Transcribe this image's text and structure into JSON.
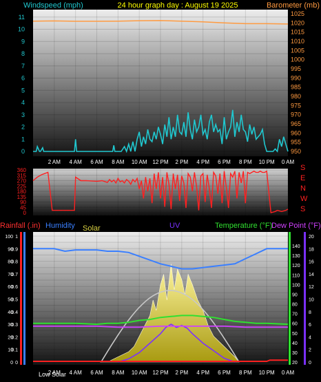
{
  "header": {
    "left": "Windspeed (mph)",
    "center": "24 hour graph day : August 19 2025",
    "right": "Barometer (mb)"
  },
  "colors": {
    "wind": "#20c8d0",
    "barometer": "#ff9a40",
    "direction": "#ff2020",
    "humidity": "#3a7fff",
    "temperature": "#30e030",
    "dewpoint": "#d040ff",
    "uv": "#7a30ff",
    "solar": "#d8d040",
    "rain": "#ff2020",
    "sun_arc": "#c8c8c8",
    "header_center": "#ffff00"
  },
  "time_labels": [
    "2 AM",
    "4 AM",
    "6 AM",
    "8 AM",
    "10 AM",
    "12 PM",
    "2 PM",
    "4 PM",
    "6 PM",
    "8 PM",
    "10 PM",
    "0 AM"
  ],
  "chart_data": [
    {
      "type": "line",
      "title": "24 hour graph day : August 19 2025",
      "xlabel": "",
      "ylabel": "Windspeed (mph)",
      "y2label": "Barometer (mb)",
      "x_range_hours": [
        0,
        24
      ],
      "ylim": [
        0,
        12
      ],
      "y_ticks": [
        0,
        1,
        2,
        3,
        4,
        5,
        6,
        7,
        8,
        9,
        10,
        11
      ],
      "y2lim": [
        947,
        1027
      ],
      "y2_ticks": [
        950,
        955,
        960,
        965,
        970,
        975,
        980,
        985,
        990,
        995,
        1000,
        1005,
        1010,
        1015,
        1020,
        1025
      ],
      "series": [
        {
          "name": "Windspeed (mph)",
          "x": [
            0.0,
            0.3,
            0.4,
            0.6,
            0.7,
            0.9,
            1.0,
            1.2,
            1.5,
            2.0,
            2.5,
            3.0,
            3.5,
            3.9,
            4.0,
            4.1,
            4.5,
            5.0,
            5.5,
            6.0,
            6.5,
            7.0,
            7.5,
            7.6,
            7.7,
            8.0,
            8.3,
            8.6,
            8.8,
            9.0,
            9.2,
            9.4,
            9.6,
            9.8,
            10.0,
            10.2,
            10.4,
            10.6,
            10.8,
            11.0,
            11.2,
            11.4,
            11.6,
            11.8,
            12.0,
            12.2,
            12.4,
            12.6,
            12.8,
            13.0,
            13.2,
            13.4,
            13.6,
            13.8,
            14.0,
            14.2,
            14.4,
            14.6,
            14.8,
            15.0,
            15.2,
            15.4,
            15.6,
            15.8,
            16.0,
            16.2,
            16.4,
            16.6,
            16.8,
            17.0,
            17.2,
            17.4,
            17.6,
            17.8,
            18.0,
            18.2,
            18.4,
            18.6,
            18.8,
            19.0,
            19.2,
            19.4,
            19.6,
            19.8,
            20.0,
            20.2,
            20.4,
            20.6,
            20.8,
            21.0,
            21.2,
            21.4,
            21.6,
            21.8,
            22.0,
            22.2,
            22.4,
            22.6,
            22.8,
            23.0,
            23.2,
            23.4,
            23.6,
            23.8,
            24.0
          ],
          "values": [
            0,
            0,
            0.4,
            0,
            0,
            0.3,
            0,
            0,
            0,
            0,
            0,
            0,
            0,
            0,
            1,
            0,
            0,
            0,
            0,
            0,
            0,
            0,
            0,
            0.5,
            0,
            0,
            0,
            0.4,
            0,
            0.6,
            0,
            0.8,
            0,
            1.0,
            1.6,
            0.4,
            1.2,
            0.6,
            1.8,
            1.0,
            0.8,
            1.6,
            1.0,
            2.0,
            1.4,
            0.6,
            2.2,
            1.2,
            2.8,
            1.0,
            2.0,
            1.2,
            3.0,
            1.6,
            1.4,
            2.4,
            1.2,
            3.2,
            1.8,
            1.0,
            2.6,
            1.6,
            2.0,
            3.0,
            1.4,
            1.8,
            1.0,
            2.4,
            3.0,
            1.6,
            2.2,
            1.6,
            1.8,
            0.6,
            2.8,
            1.0,
            1.6,
            2.0,
            3.4,
            1.2,
            2.4,
            1.6,
            3.0,
            1.8,
            1.6,
            0.8,
            2.2,
            1.4,
            2.0,
            1.0,
            1.2,
            1.4,
            1.8,
            0.6,
            0,
            0,
            0,
            0,
            0.2,
            0,
            1.0,
            0.4,
            1.2,
            0.6,
            0
          ]
        },
        {
          "name": "Barometer (mb)",
          "x": [
            0,
            2,
            4,
            6,
            8,
            10,
            12,
            14,
            16,
            18,
            20,
            22,
            24
          ],
          "values": [
            1021.0,
            1021.1,
            1020.9,
            1020.9,
            1021.0,
            1021.2,
            1021.3,
            1021.0,
            1020.6,
            1020.0,
            1019.6,
            1019.6,
            1019.4
          ]
        }
      ]
    },
    {
      "type": "line",
      "ylabel": "",
      "ylim": [
        0,
        360
      ],
      "y_ticks": [
        0,
        45,
        90,
        135,
        180,
        225,
        270,
        315,
        360
      ],
      "direction_labels": [
        "S",
        "E",
        "N",
        "W",
        "S"
      ],
      "series": [
        {
          "name": "",
          "x": [
            0.0,
            0.4,
            0.8,
            1.4,
            1.8,
            3.0,
            3.6,
            3.9,
            4.0,
            4.5,
            5.0,
            6.0,
            6.5,
            7.0,
            7.2,
            7.4,
            7.6,
            7.8,
            8.0,
            8.2,
            8.4,
            8.6,
            8.8,
            9.0,
            9.2,
            9.4,
            9.6,
            9.8,
            10.0,
            10.2,
            10.4,
            10.6,
            10.8,
            11.0,
            11.2,
            11.4,
            11.6,
            11.8,
            12.0,
            12.2,
            12.4,
            12.6,
            12.8,
            13.0,
            13.2,
            13.4,
            13.6,
            13.8,
            14.0,
            14.2,
            14.4,
            14.6,
            14.8,
            15.0,
            15.2,
            15.4,
            15.6,
            15.8,
            16.0,
            16.2,
            16.4,
            16.6,
            16.8,
            17.0,
            17.2,
            17.4,
            17.6,
            17.8,
            18.0,
            18.2,
            18.4,
            18.6,
            18.8,
            19.0,
            19.2,
            19.4,
            19.6,
            19.8,
            20.0,
            20.2,
            20.4,
            20.6,
            20.8,
            21.0,
            21.2,
            21.4,
            21.6,
            21.8,
            22.0,
            22.4,
            22.8,
            23.0,
            23.4,
            23.8,
            24.0
          ],
          "values": [
            270,
            300,
            320,
            340,
            20,
            20,
            20,
            20,
            300,
            270,
            270,
            265,
            270,
            255,
            280,
            260,
            275,
            250,
            290,
            260,
            270,
            250,
            280,
            265,
            240,
            280,
            260,
            290,
            200,
            270,
            120,
            300,
            180,
            290,
            80,
            330,
            200,
            340,
            120,
            300,
            50,
            340,
            240,
            30,
            330,
            200,
            320,
            100,
            310,
            250,
            40,
            330,
            300,
            180,
            340,
            220,
            20,
            310,
            330,
            90,
            320,
            200,
            40,
            340,
            310,
            160,
            330,
            80,
            350,
            210,
            40,
            330,
            300,
            350,
            120,
            340,
            250,
            350,
            80,
            340,
            330,
            340,
            350,
            340,
            340,
            350,
            340,
            340,
            350,
            0,
            10,
            20,
            10,
            20,
            30
          ]
        }
      ]
    },
    {
      "type": "line",
      "ylabel": "Rainfall (.in)",
      "series_labels": [
        "Rainfall (.in)",
        "Humidity",
        "Solar",
        "UV",
        "Temperature (°F)",
        "Dew Point (°F)"
      ],
      "axes": {
        "rain": {
          "lim": [
            0,
            1.0
          ],
          "ticks": [
            "0",
            "0.05",
            "0.1",
            "0.15",
            "0.2",
            "0.25",
            "0.3",
            "0.35",
            "0.4",
            "0.45",
            "0.5",
            "0.55",
            "0.6",
            "0.65",
            "0.7",
            "0.75",
            "0.8",
            "0.85",
            "0.9",
            "0.95",
            "1"
          ]
        },
        "humidity": {
          "lim": [
            0,
            100
          ],
          "ticks": [
            "0",
            "10",
            "20",
            "30",
            "40",
            "50",
            "60",
            "70",
            "80",
            "90",
            "100"
          ]
        },
        "temperature": {
          "lim": [
            20,
            150
          ],
          "ticks": [
            "20",
            "30",
            "40",
            "50",
            "60",
            "70",
            "80",
            "90",
            "100",
            "110",
            "120",
            "130",
            "140"
          ]
        },
        "uv": {
          "lim": [
            0,
            20
          ],
          "ticks": [
            "0",
            "2",
            "4",
            "6",
            "8",
            "10",
            "12",
            "14",
            "16",
            "18",
            "20"
          ]
        }
      },
      "footer_label": "Low Solar",
      "series": [
        {
          "name": "Humidity",
          "x": [
            0,
            1,
            2,
            3,
            4,
            5,
            6,
            7,
            8,
            9,
            10,
            11,
            12,
            13,
            14,
            15,
            16,
            17,
            18,
            19,
            20,
            21,
            22,
            23,
            24
          ],
          "values": [
            90,
            90,
            90,
            88,
            89,
            89,
            89,
            88,
            88,
            87,
            84,
            81,
            78,
            76,
            74,
            74,
            75,
            76,
            77,
            78,
            82,
            86,
            90,
            90,
            90
          ]
        },
        {
          "name": "Temperature (°F)",
          "x": [
            0,
            2,
            4,
            6,
            7,
            8,
            9,
            10,
            11,
            12,
            13,
            14,
            15,
            16,
            17,
            18,
            19,
            20,
            21,
            22,
            24
          ],
          "values": [
            60,
            60,
            60,
            59,
            60,
            60,
            61,
            63,
            64,
            66,
            67,
            68,
            68,
            67,
            66,
            64,
            62,
            61,
            60,
            60,
            59
          ]
        },
        {
          "name": "Dew Point (°F)",
          "x": [
            0,
            2,
            4,
            6,
            8,
            10,
            12,
            14,
            16,
            18,
            20,
            22,
            24
          ],
          "values": [
            57,
            57,
            57,
            57,
            56,
            56,
            57,
            57,
            57,
            57,
            56,
            56,
            56
          ]
        },
        {
          "name": "Solar",
          "x": [
            6.3,
            7,
            8,
            9,
            9.5,
            10,
            10.5,
            11,
            11.3,
            11.6,
            12,
            12.3,
            12.6,
            13,
            13.3,
            13.6,
            14,
            14.3,
            14.6,
            15,
            15.5,
            16,
            16.5,
            17,
            18,
            19,
            19.4
          ],
          "values": [
            0,
            0,
            0.5,
            1,
            1.5,
            2.5,
            3.5,
            4.5,
            6,
            5,
            7.5,
            8.5,
            6,
            9.5,
            7,
            9,
            8,
            6.5,
            8.5,
            7.5,
            6,
            5,
            3.5,
            2.5,
            1.5,
            0.5,
            0
          ]
        },
        {
          "name": "UV",
          "x": [
            8,
            9,
            10,
            11,
            12,
            12.5,
            13,
            13.5,
            14,
            14.5,
            15,
            16,
            17,
            18,
            19
          ],
          "values": [
            0,
            0.5,
            1.5,
            3,
            4.5,
            5.5,
            6,
            5.5,
            5.8,
            5.4,
            4.5,
            3,
            1.8,
            0.6,
            0
          ]
        },
        {
          "name": "Rainfall (.in)",
          "x": [
            0,
            22,
            22.3,
            24
          ],
          "values": [
            0,
            0,
            0.01,
            0.01
          ]
        }
      ]
    }
  ]
}
